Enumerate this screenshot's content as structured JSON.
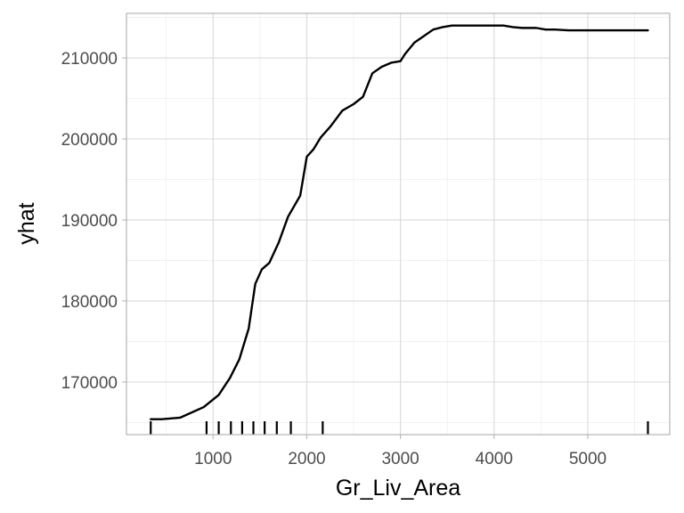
{
  "chart_data": {
    "type": "line",
    "title": "",
    "xlabel": "Gr_Liv_Area",
    "ylabel": "yhat",
    "xlim": [
      75,
      5875
    ],
    "ylim": [
      163500,
      215500
    ],
    "x_ticks": [
      1000,
      2000,
      3000,
      4000,
      5000
    ],
    "x_tick_labels": [
      "1000",
      "2000",
      "3000",
      "4000",
      "5000"
    ],
    "y_ticks": [
      170000,
      180000,
      190000,
      200000,
      210000
    ],
    "y_tick_labels": [
      "170000",
      "180000",
      "190000",
      "200000",
      "210000"
    ],
    "grid": true,
    "legend": "none",
    "line_color": "#000000",
    "series": [
      {
        "x": [
          334,
          450,
          650,
          900,
          1060,
          1180,
          1280,
          1380,
          1450,
          1520,
          1600,
          1700,
          1800,
          1930,
          2000,
          2070,
          2150,
          2250,
          2380,
          2500,
          2600,
          2700,
          2800,
          2900,
          3000,
          3050,
          3150,
          3250,
          3350,
          3450,
          3550,
          3650,
          3750,
          3900,
          4100,
          4200,
          4300,
          4450,
          4550,
          4650,
          4800,
          5000,
          5200,
          5400,
          5642
        ],
        "y": [
          165400,
          165400,
          165600,
          166900,
          168400,
          170500,
          172800,
          176600,
          182100,
          183900,
          184700,
          187200,
          190400,
          193000,
          197800,
          198700,
          200200,
          201500,
          203500,
          204300,
          205200,
          208100,
          208900,
          209400,
          209600,
          210500,
          211900,
          212700,
          213500,
          213800,
          214000,
          214000,
          214000,
          214000,
          214000,
          213800,
          213700,
          213700,
          213500,
          213500,
          213400,
          213400,
          213400,
          213400,
          213400
        ]
      }
    ],
    "rug_x": [
      334,
      930,
      1060,
      1190,
      1310,
      1430,
      1550,
      1680,
      1830,
      2170,
      5642
    ],
    "colors": {
      "panel_border": "#b3b3b3",
      "grid_major": "#d9d9d9",
      "grid_minor": "#eeeeee",
      "tick_label": "#4d4d4d",
      "rug": "#000000"
    }
  }
}
